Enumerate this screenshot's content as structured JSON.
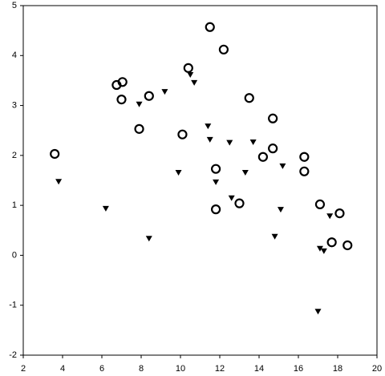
{
  "chart_data": {
    "type": "scatter",
    "xlim": [
      2,
      20
    ],
    "xticks": [
      2,
      4,
      6,
      8,
      10,
      12,
      14,
      16,
      18,
      20
    ],
    "ylim": [
      -2,
      5
    ],
    "yticks": [
      -2,
      -1,
      0,
      1,
      2,
      3,
      4,
      5
    ],
    "series": [
      {
        "marker": "circle",
        "color": "#000000",
        "x": [
          3.6,
          6.75,
          7.05,
          7.0,
          8.4,
          7.9,
          10.4,
          10.1,
          11.5,
          12.2,
          13.5,
          14.7,
          11.8,
          11.8,
          13.0,
          14.2,
          14.7,
          16.3,
          16.3,
          17.1,
          18.1,
          17.7,
          18.5
        ],
        "values": [
          2.03,
          3.41,
          3.47,
          3.12,
          3.19,
          2.53,
          3.75,
          2.42,
          4.57,
          4.12,
          3.15,
          2.74,
          1.73,
          0.92,
          1.04,
          1.97,
          2.14,
          1.97,
          1.68,
          1.02,
          0.84,
          0.26,
          0.2
        ]
      },
      {
        "marker": "triangle-down",
        "color": "#000000",
        "x": [
          3.8,
          6.2,
          8.4,
          7.9,
          9.2,
          10.5,
          10.7,
          9.9,
          11.4,
          11.5,
          11.8,
          12.5,
          13.7,
          13.3,
          12.6,
          15.2,
          15.1,
          14.8,
          17.6,
          17.1,
          17.3,
          17.0
        ],
        "values": [
          1.48,
          0.94,
          0.34,
          3.03,
          3.28,
          3.62,
          3.46,
          1.66,
          2.59,
          2.32,
          1.47,
          2.26,
          2.27,
          1.66,
          1.15,
          1.79,
          0.92,
          0.38,
          0.79,
          0.14,
          0.09,
          -1.12
        ]
      }
    ]
  }
}
